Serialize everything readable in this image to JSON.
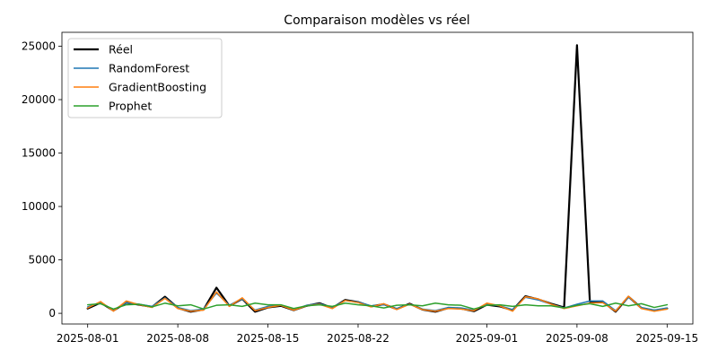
{
  "chart_data": {
    "type": "line",
    "title": "Comparaison modèles vs réel",
    "xlabel": "",
    "ylabel": "",
    "x_range": [
      "2025-07-30",
      "2025-09-17"
    ],
    "ylim": [
      -1000,
      26300
    ],
    "xticks": [
      "2025-08-01",
      "2025-08-08",
      "2025-08-15",
      "2025-08-22",
      "2025-09-01",
      "2025-09-08",
      "2025-09-15"
    ],
    "yticks": [
      0,
      5000,
      10000,
      15000,
      20000,
      25000
    ],
    "grid": false,
    "legend": "top-left",
    "x": [
      "2025-08-01",
      "2025-08-02",
      "2025-08-03",
      "2025-08-04",
      "2025-08-05",
      "2025-08-06",
      "2025-08-07",
      "2025-08-08",
      "2025-08-09",
      "2025-08-10",
      "2025-08-11",
      "2025-08-12",
      "2025-08-13",
      "2025-08-14",
      "2025-08-15",
      "2025-08-16",
      "2025-08-17",
      "2025-08-18",
      "2025-08-19",
      "2025-08-20",
      "2025-08-21",
      "2025-08-22",
      "2025-08-23",
      "2025-08-24",
      "2025-08-25",
      "2025-08-26",
      "2025-08-27",
      "2025-08-28",
      "2025-08-29",
      "2025-08-30",
      "2025-08-31",
      "2025-09-01",
      "2025-09-02",
      "2025-09-03",
      "2025-09-04",
      "2025-09-05",
      "2025-09-06",
      "2025-09-07",
      "2025-09-08",
      "2025-09-09",
      "2025-09-10",
      "2025-09-11",
      "2025-09-12",
      "2025-09-13",
      "2025-09-14",
      "2025-09-15"
    ],
    "series": [
      {
        "name": "Réel",
        "color": "#000000",
        "width": 2.2,
        "values": [
          450,
          1000,
          250,
          1000,
          800,
          600,
          1550,
          500,
          150,
          350,
          2400,
          700,
          1350,
          150,
          550,
          700,
          300,
          700,
          950,
          500,
          1250,
          1050,
          650,
          850,
          400,
          900,
          350,
          150,
          500,
          450,
          200,
          800,
          650,
          300,
          1600,
          1300,
          900,
          550,
          25100,
          1100,
          1100,
          150,
          1550,
          500,
          250,
          450
        ]
      },
      {
        "name": "RandomForest",
        "color": "#1f77b4",
        "width": 1.5,
        "values": [
          600,
          1000,
          300,
          1000,
          850,
          650,
          1450,
          550,
          250,
          400,
          1900,
          750,
          1350,
          300,
          650,
          750,
          350,
          750,
          900,
          550,
          1200,
          1050,
          700,
          800,
          450,
          850,
          400,
          250,
          550,
          500,
          300,
          850,
          700,
          350,
          1500,
          1250,
          850,
          500,
          850,
          1150,
          1150,
          250,
          1500,
          550,
          300,
          500
        ]
      },
      {
        "name": "GradientBoosting",
        "color": "#ff7f0e",
        "width": 1.5,
        "values": [
          500,
          1100,
          200,
          1150,
          800,
          550,
          1400,
          450,
          200,
          300,
          2000,
          650,
          1450,
          250,
          550,
          750,
          300,
          700,
          850,
          450,
          1200,
          1000,
          600,
          900,
          350,
          850,
          350,
          200,
          450,
          400,
          250,
          950,
          700,
          200,
          1550,
          1350,
          850,
          450,
          700,
          950,
          1000,
          200,
          1600,
          450,
          200,
          400
        ]
      },
      {
        "name": "Prophet",
        "color": "#2ca02c",
        "width": 1.5,
        "values": [
          800,
          900,
          400,
          800,
          850,
          600,
          950,
          700,
          800,
          400,
          750,
          800,
          650,
          950,
          800,
          800,
          450,
          700,
          800,
          650,
          950,
          800,
          700,
          500,
          750,
          800,
          700,
          950,
          800,
          750,
          400,
          750,
          800,
          650,
          800,
          700,
          700,
          500,
          750,
          900,
          650,
          950,
          700,
          900,
          550,
          800
        ]
      }
    ]
  }
}
